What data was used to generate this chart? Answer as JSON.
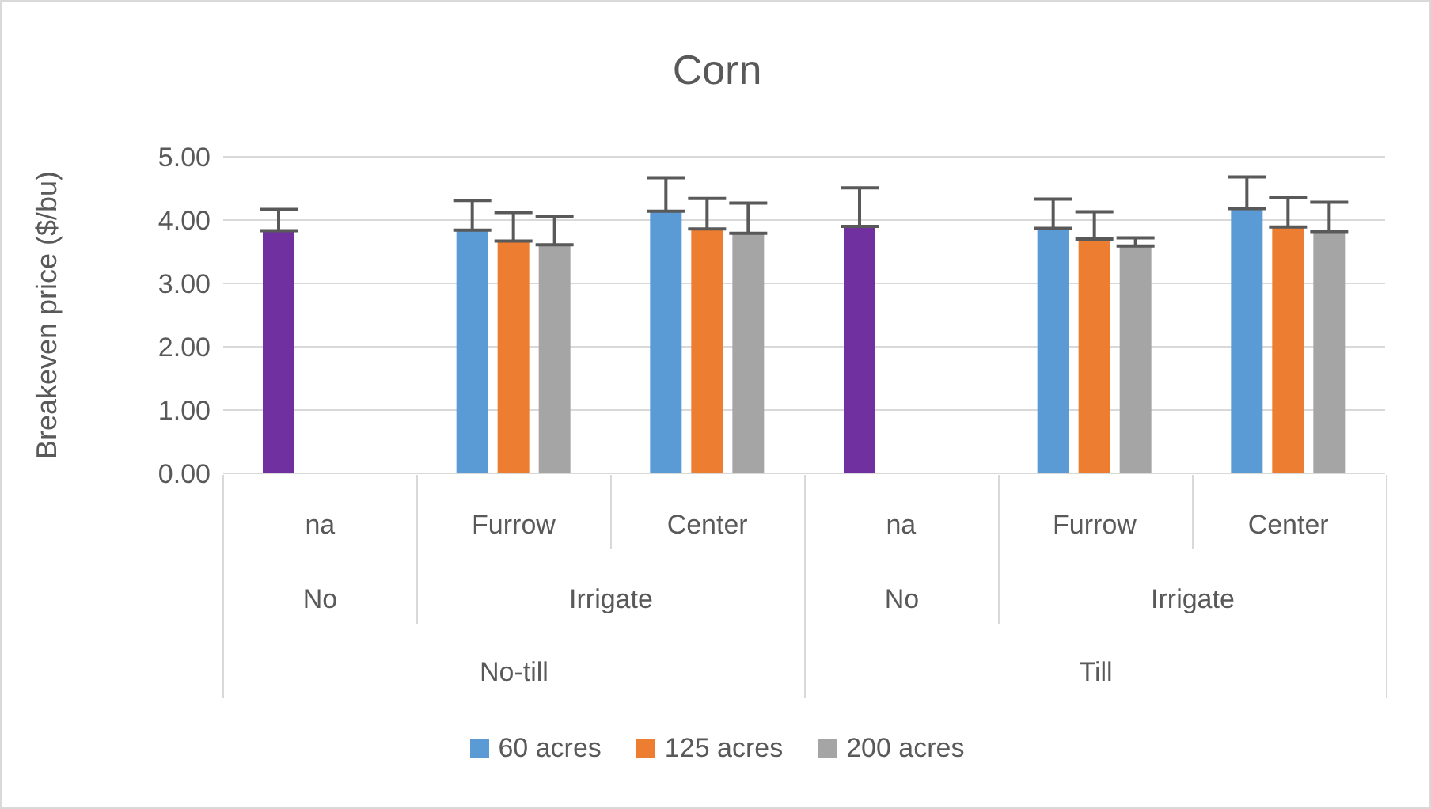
{
  "chart_data": {
    "type": "bar",
    "title": "Corn",
    "ylabel": "Breakeven price ($/bu)",
    "categories": [
      "na",
      "Furrow",
      "Center",
      "na",
      "Furrow",
      "Center"
    ],
    "series": [
      {
        "name": "60 acres",
        "color": "#5b9bd5",
        "colors": [
          "#7030a0",
          "#5b9bd5",
          "#5b9bd5",
          "#7030a0",
          "#5b9bd5",
          "#5b9bd5"
        ],
        "values": [
          3.83,
          3.84,
          4.14,
          3.9,
          3.87,
          4.18
        ],
        "errors": [
          [
            3.83,
            4.17
          ],
          [
            3.84,
            4.31
          ],
          [
            4.14,
            4.67
          ],
          [
            3.9,
            4.51
          ],
          [
            3.87,
            4.33
          ],
          [
            4.18,
            4.68
          ]
        ]
      },
      {
        "name": "125 acres",
        "color": "#ed7d31",
        "values": [
          null,
          3.67,
          3.86,
          null,
          3.7,
          3.89
        ],
        "errors": [
          null,
          [
            3.67,
            4.12
          ],
          [
            3.86,
            4.34
          ],
          null,
          [
            3.7,
            4.13
          ],
          [
            3.89,
            4.36
          ]
        ]
      },
      {
        "name": "200 acres",
        "color": "#a5a5a5",
        "values": [
          null,
          3.61,
          3.79,
          null,
          3.59,
          3.82
        ],
        "errors": [
          null,
          [
            3.61,
            4.05
          ],
          [
            3.79,
            4.27
          ],
          null,
          [
            3.59,
            3.72
          ],
          [
            3.82,
            4.28
          ]
        ]
      }
    ],
    "annotations": [
      "No",
      "Irrigate",
      "No",
      "Irrigate",
      "No-till",
      "Till"
    ],
    "ylim": [
      0,
      5
    ],
    "yticks": [
      {
        "value": 0,
        "label": "0.00"
      },
      {
        "value": 1,
        "label": "1.00"
      },
      {
        "value": 2,
        "label": "2.00"
      },
      {
        "value": 3,
        "label": "3.00"
      },
      {
        "value": 4,
        "label": "4.00"
      },
      {
        "value": 5,
        "label": "5.00"
      }
    ],
    "grid": "y",
    "legend": "bottom"
  }
}
